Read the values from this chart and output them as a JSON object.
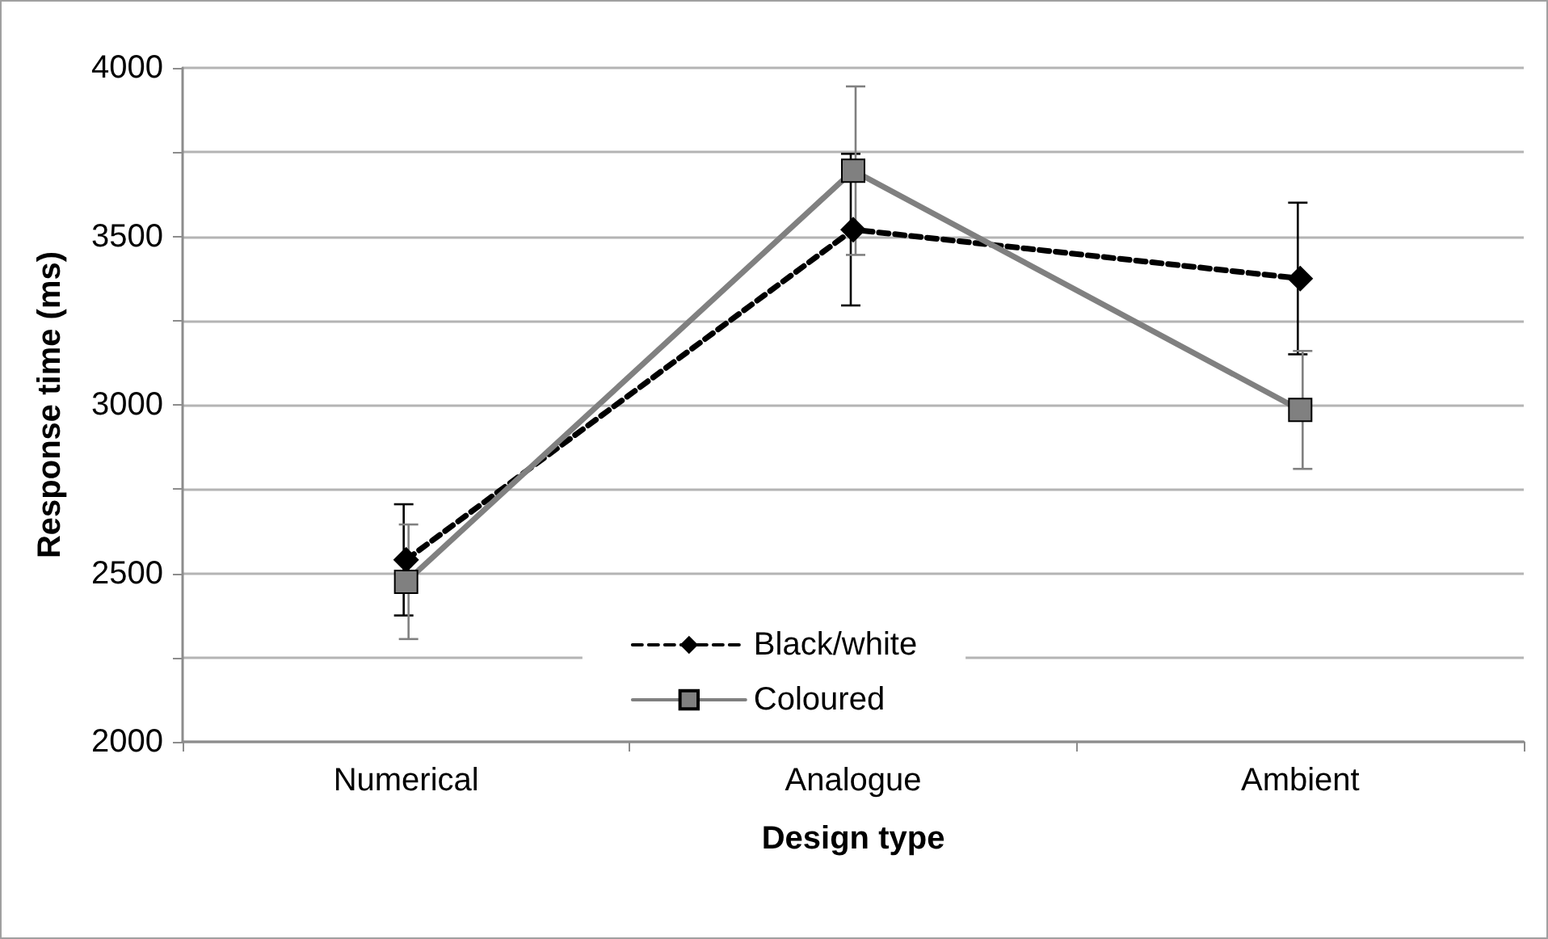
{
  "chart_data": {
    "type": "line",
    "xlabel": "Design type",
    "ylabel": "Response time (ms)",
    "categories": [
      "Numerical",
      "Analogue",
      "Ambient"
    ],
    "series": [
      {
        "name": "Black/white",
        "color": "#000000",
        "values": [
          2540,
          3520,
          3375
        ],
        "errors": [
          165,
          225,
          225
        ],
        "marker": "diamond",
        "line_style": "dashed"
      },
      {
        "name": "Coloured",
        "color": "#808080",
        "values": [
          2475,
          3695,
          2985
        ],
        "errors": [
          170,
          250,
          175
        ],
        "marker": "square",
        "line_style": "solid"
      }
    ],
    "ylim": [
      2000,
      4000
    ],
    "yticks": [
      2000,
      {
        "value": 2250,
        "label": null
      },
      2500,
      {
        "value": 2750,
        "label": null
      },
      3000,
      {
        "value": 3250,
        "label": null
      },
      3500,
      {
        "value": 3750,
        "label": null
      },
      4000
    ],
    "grid": true,
    "legend": "bottom"
  }
}
